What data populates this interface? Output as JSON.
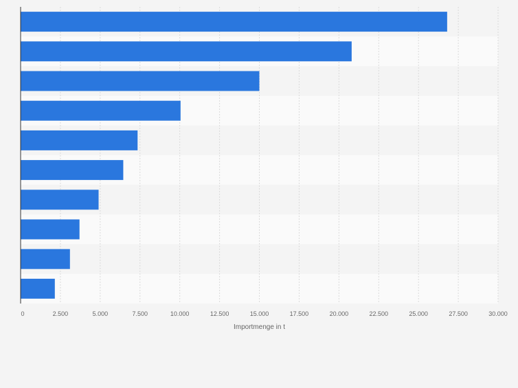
{
  "chart_data": {
    "type": "bar",
    "orientation": "horizontal",
    "categories": [
      "",
      "",
      "",
      "",
      "",
      "",
      "",
      "",
      "",
      ""
    ],
    "values": [
      26800,
      20800,
      15000,
      10050,
      7350,
      6450,
      4900,
      3700,
      3100,
      2150
    ],
    "xlabel": "Importmenge in t",
    "ylabel": "",
    "xlim": [
      0,
      30000
    ],
    "xticks": [
      0,
      2500,
      5000,
      7500,
      10000,
      12500,
      15000,
      17500,
      20000,
      22500,
      25000,
      27500,
      30000
    ],
    "xtick_labels": [
      "0",
      "2.500",
      "5.000",
      "7.500",
      "10.000",
      "12.500",
      "15.000",
      "17.500",
      "20.000",
      "22.500",
      "25.000",
      "27.500",
      "30.000"
    ],
    "grid": "vertical",
    "legend": "none",
    "colors": {
      "bar": "#2a77de",
      "band_light": "#fafafa",
      "band_dark": "#f4f4f4",
      "grid": "#dadada",
      "axis": "#333333",
      "tick_text": "#666666"
    }
  }
}
